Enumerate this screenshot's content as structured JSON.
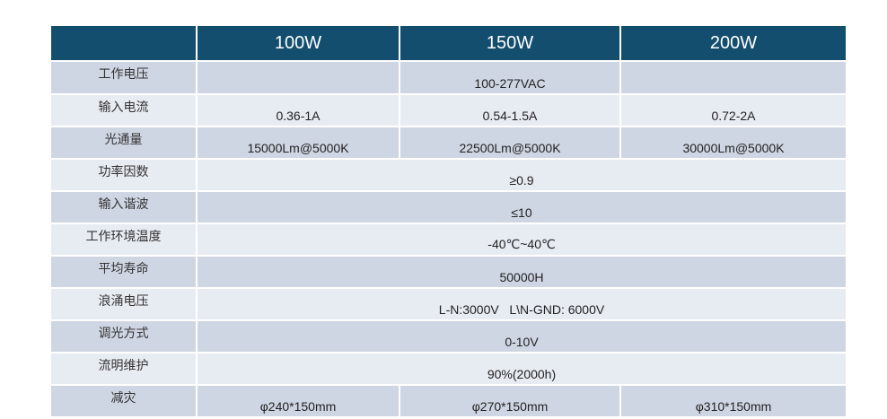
{
  "header": {
    "corner": "",
    "cols": [
      "100W",
      "150W",
      "200W"
    ]
  },
  "rows": [
    {
      "label": "工作电压",
      "values": [
        "",
        "100-277VAC",
        ""
      ]
    },
    {
      "label": "输入电流",
      "values": [
        "0.36-1A",
        "0.54-1.5A",
        "0.72-2A"
      ]
    },
    {
      "label": "光通量",
      "values": [
        "15000Lm@5000K",
        "22500Lm@5000K",
        "30000Lm@5000K"
      ]
    },
    {
      "label": "功率因数",
      "value": "≥0.9"
    },
    {
      "label": "输入谐波",
      "value": "≤10"
    },
    {
      "label": "工作环境温度",
      "value": "-40℃~40℃"
    },
    {
      "label": "平均寿命",
      "value": "50000H"
    },
    {
      "label": "浪涌电压",
      "value": "L-N:3000V   L\\N-GND: 6000V"
    },
    {
      "label": "调光方式",
      "value": "0-10V"
    },
    {
      "label": "流明维护",
      "value": "90%(2000h)"
    },
    {
      "label": "减灾",
      "values": [
        "φ240*150mm",
        "φ270*150mm",
        "φ310*150mm"
      ]
    }
  ],
  "colors": {
    "header": "#144e6f",
    "row_dark": "#cfd6e3",
    "row_light": "#e7ebf2"
  }
}
